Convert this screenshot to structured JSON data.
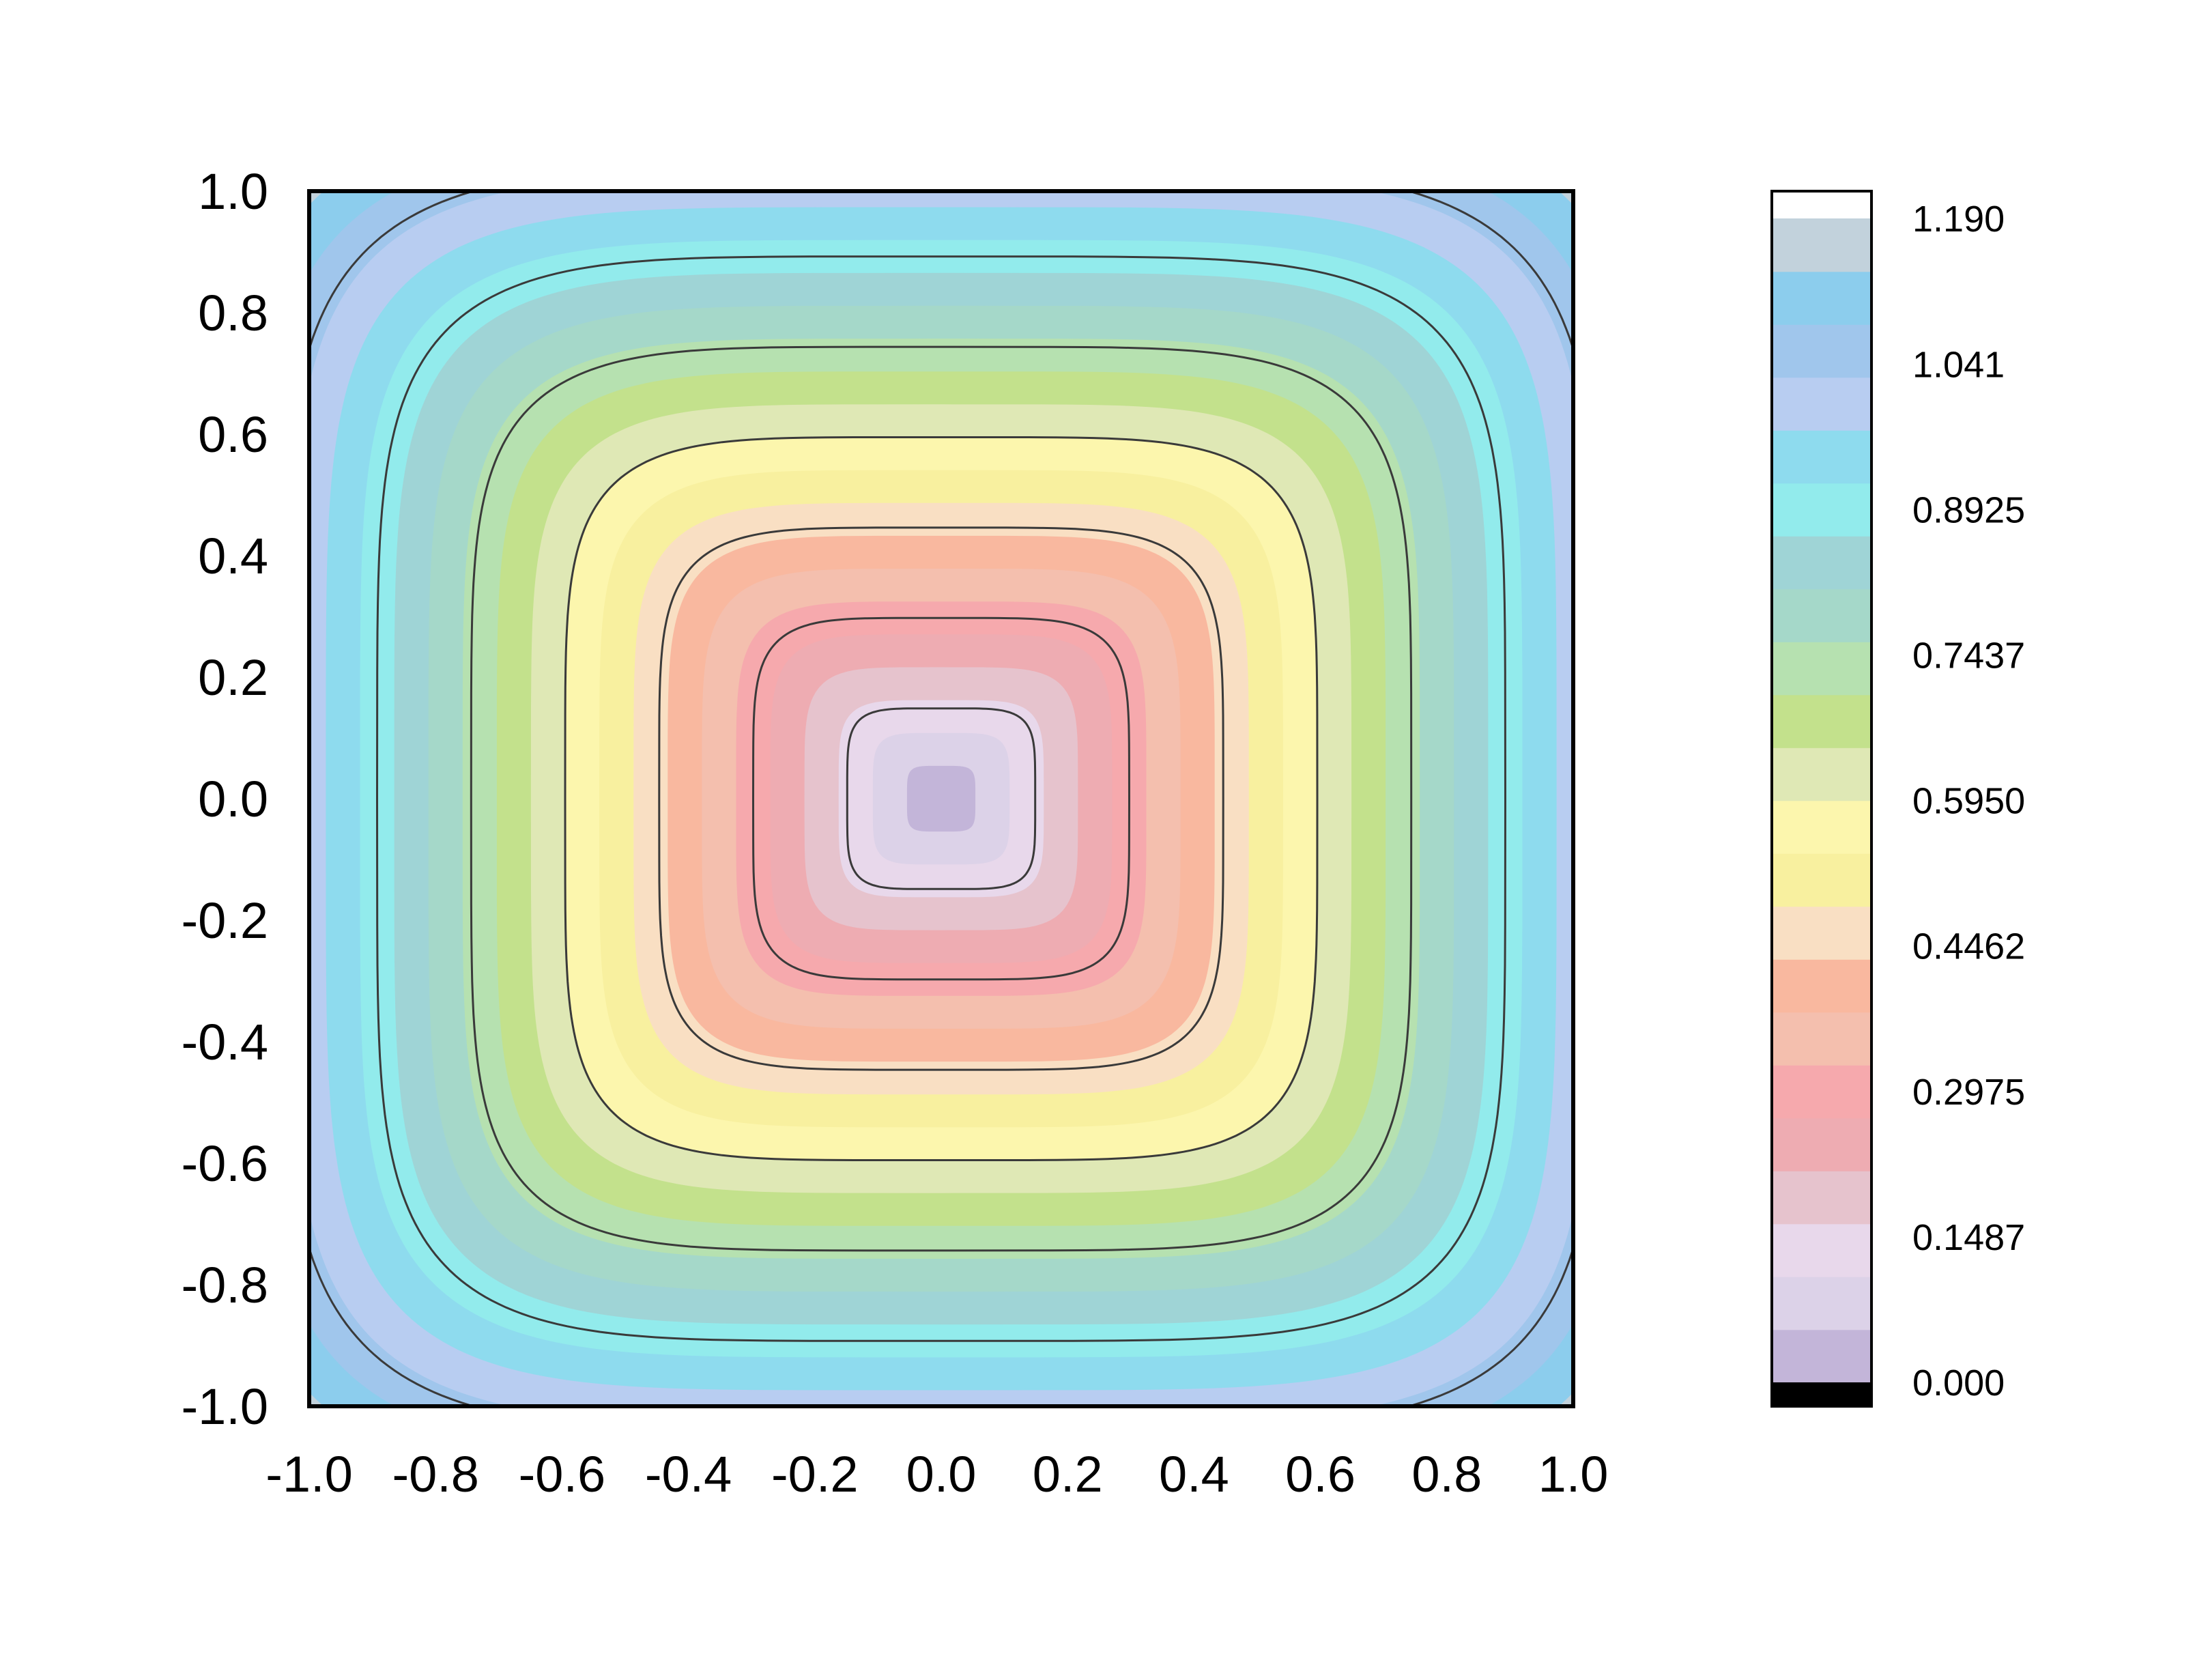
{
  "chart_data": {
    "type": "heatmap",
    "title": "",
    "xlabel": "",
    "ylabel": "",
    "xlim": [
      -1.0,
      1.0
    ],
    "ylim": [
      -1.0,
      1.0
    ],
    "field": "value grows from 0.000 at the center (0,0) to about 1.190 at the corners; square-like (superelliptic) level sets",
    "x_ticks": [
      "-1.0",
      "-0.8",
      "-0.6",
      "-0.4",
      "-0.2",
      "0.0",
      "0.2",
      "0.4",
      "0.6",
      "0.8",
      "1.0"
    ],
    "y_ticks": [
      "1.0",
      "0.8",
      "0.6",
      "0.4",
      "0.2",
      "0.0",
      "-0.2",
      "-0.4",
      "-0.6",
      "-0.8",
      "-1.0"
    ],
    "contour_levels": [
      0.1487,
      0.2975,
      0.4462,
      0.595,
      0.7437,
      0.8925,
      1.041
    ],
    "colorbar": {
      "min": 0.0,
      "max": 1.19,
      "tick_values": [
        0.0,
        0.1487,
        0.2975,
        0.4462,
        0.595,
        0.7437,
        0.8925,
        1.041,
        1.19
      ],
      "tick_labels": [
        "0.000",
        "0.1487",
        "0.2975",
        "0.4462",
        "0.5950",
        "0.7437",
        "0.8925",
        "1.041",
        "1.190"
      ],
      "colors": [
        "#c3b5d9",
        "#dcd2e8",
        "#e8d8eb",
        "#e6c3cd",
        "#eeacb2",
        "#f6a9ad",
        "#f4bfae",
        "#f9b89f",
        "#f9dfc3",
        "#f8f09f",
        "#fcf6ad",
        "#dfe8b5",
        "#c3e18c",
        "#b6e1b0",
        "#a5d8c9",
        "#9fd4d6",
        "#92ebec",
        "#8edbee",
        "#b8cdf1",
        "#a0c6ec",
        "#8ccded",
        "#c2d2dc",
        "#ffffff"
      ]
    }
  }
}
